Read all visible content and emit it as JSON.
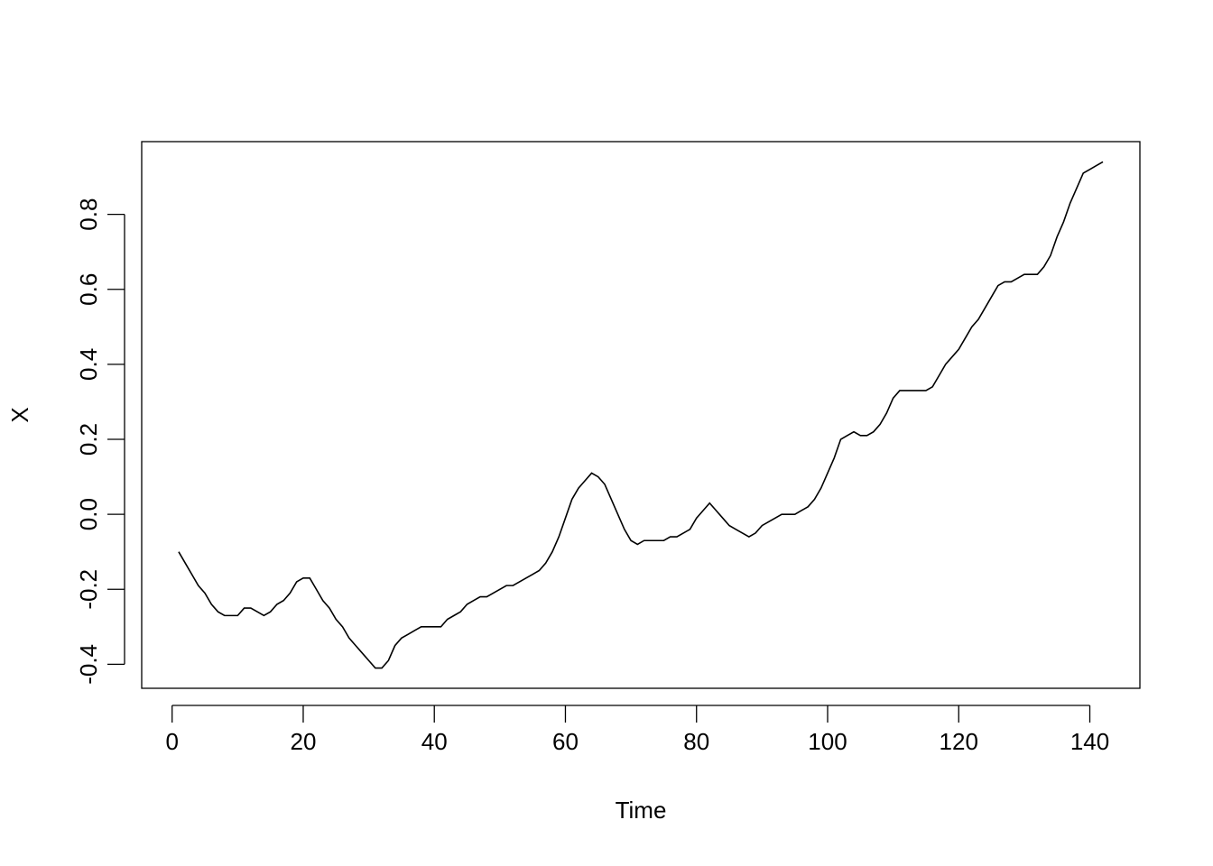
{
  "chart_data": {
    "type": "line",
    "xlabel": "Time",
    "ylabel": "X",
    "color": "#000000",
    "x": [
      1,
      2,
      3,
      4,
      5,
      6,
      7,
      8,
      9,
      10,
      11,
      12,
      13,
      14,
      15,
      16,
      17,
      18,
      19,
      20,
      21,
      22,
      23,
      24,
      25,
      26,
      27,
      28,
      29,
      30,
      31,
      32,
      33,
      34,
      35,
      36,
      37,
      38,
      39,
      40,
      41,
      42,
      43,
      44,
      45,
      46,
      47,
      48,
      49,
      50,
      51,
      52,
      53,
      54,
      55,
      56,
      57,
      58,
      59,
      60,
      61,
      62,
      63,
      64,
      65,
      66,
      67,
      68,
      69,
      70,
      71,
      72,
      73,
      74,
      75,
      76,
      77,
      78,
      79,
      80,
      81,
      82,
      83,
      84,
      85,
      86,
      87,
      88,
      89,
      90,
      91,
      92,
      93,
      94,
      95,
      96,
      97,
      98,
      99,
      100,
      101,
      102,
      103,
      104,
      105,
      106,
      107,
      108,
      109,
      110,
      111,
      112,
      113,
      114,
      115,
      116,
      117,
      118,
      119,
      120,
      121,
      122,
      123,
      124,
      125,
      126,
      127,
      128,
      129,
      130,
      131,
      132,
      133,
      134,
      135,
      136,
      137,
      138,
      139,
      140,
      141,
      142
    ],
    "values": [
      -0.1,
      -0.13,
      -0.16,
      -0.19,
      -0.21,
      -0.24,
      -0.26,
      -0.27,
      -0.27,
      -0.27,
      -0.25,
      -0.25,
      -0.26,
      -0.27,
      -0.26,
      -0.24,
      -0.23,
      -0.21,
      -0.18,
      -0.17,
      -0.17,
      -0.2,
      -0.23,
      -0.25,
      -0.28,
      -0.3,
      -0.33,
      -0.35,
      -0.37,
      -0.39,
      -0.41,
      -0.41,
      -0.39,
      -0.35,
      -0.33,
      -0.32,
      -0.31,
      -0.3,
      -0.3,
      -0.3,
      -0.3,
      -0.28,
      -0.27,
      -0.26,
      -0.24,
      -0.23,
      -0.22,
      -0.22,
      -0.21,
      -0.2,
      -0.19,
      -0.19,
      -0.18,
      -0.17,
      -0.16,
      -0.15,
      -0.13,
      -0.1,
      -0.06,
      -0.01,
      0.04,
      0.07,
      0.09,
      0.11,
      0.1,
      0.08,
      0.04,
      0.0,
      -0.04,
      -0.07,
      -0.08,
      -0.07,
      -0.07,
      -0.07,
      -0.07,
      -0.06,
      -0.06,
      -0.05,
      -0.04,
      -0.01,
      0.01,
      0.03,
      0.01,
      -0.01,
      -0.03,
      -0.04,
      -0.05,
      -0.06,
      -0.05,
      -0.03,
      -0.02,
      -0.01,
      0.0,
      0.0,
      0.0,
      0.01,
      0.02,
      0.04,
      0.07,
      0.11,
      0.15,
      0.2,
      0.21,
      0.22,
      0.21,
      0.21,
      0.22,
      0.24,
      0.27,
      0.31,
      0.33,
      0.33,
      0.33,
      0.33,
      0.33,
      0.34,
      0.37,
      0.4,
      0.42,
      0.44,
      0.47,
      0.5,
      0.52,
      0.55,
      0.58,
      0.61,
      0.62,
      0.62,
      0.63,
      0.64,
      0.64,
      0.64,
      0.66,
      0.69,
      0.74,
      0.78,
      0.83,
      0.87,
      0.91,
      0.92,
      0.93,
      0.94
    ],
    "xlim": [
      -4.64,
      147.64
    ],
    "xticks": [
      0,
      20,
      40,
      60,
      80,
      100,
      120,
      140
    ],
    "ylim": [
      -0.464,
      0.994
    ],
    "yticks": [
      -0.4,
      -0.2,
      {
        "value": 0,
        "label": "0.0"
      },
      0.2,
      0.4,
      0.6,
      0.8
    ]
  }
}
